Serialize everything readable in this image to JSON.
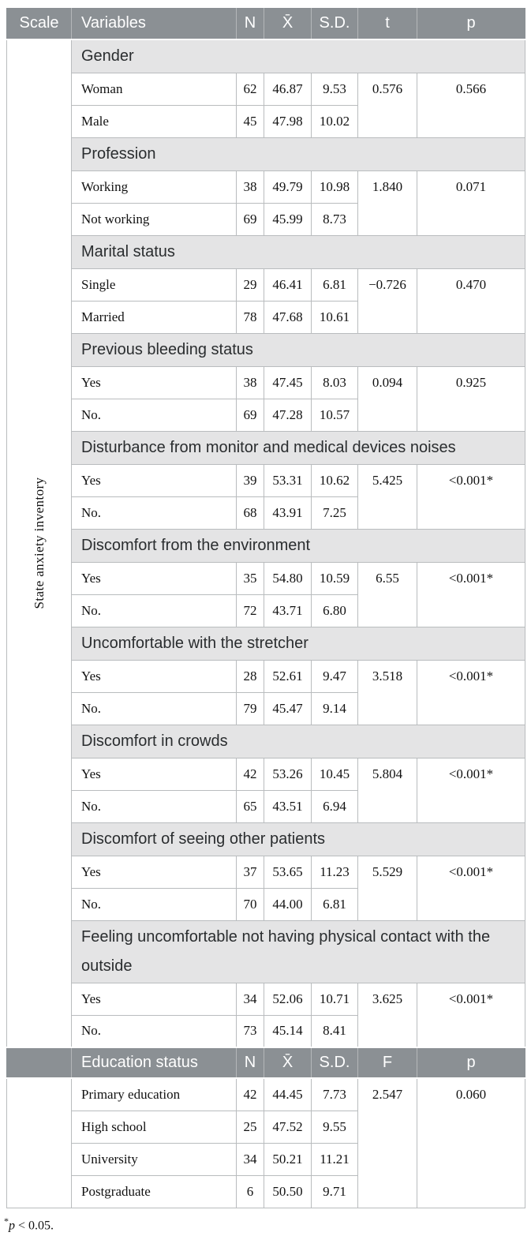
{
  "colors": {
    "header_bg": "#8b9094",
    "section_bg": "#e4e4e5",
    "border": "#b9bcbe",
    "header_text": "#ffffff"
  },
  "table": {
    "scale_label": "State anxiety inventory",
    "header": {
      "scale": "Scale",
      "variables": "Variables",
      "n": "N",
      "mean": "X̄",
      "sd": "S.D.",
      "t": "t",
      "p": "p"
    },
    "sections": [
      {
        "title": "Gender",
        "rows": [
          {
            "label": "Woman",
            "n": "62",
            "mean": "46.87",
            "sd": "9.53"
          },
          {
            "label": "Male",
            "n": "45",
            "mean": "47.98",
            "sd": "10.02"
          }
        ],
        "t": "0.576",
        "p": "0.566"
      },
      {
        "title": "Profession",
        "rows": [
          {
            "label": "Working",
            "n": "38",
            "mean": "49.79",
            "sd": "10.98"
          },
          {
            "label": "Not working",
            "n": "69",
            "mean": "45.99",
            "sd": "8.73"
          }
        ],
        "t": "1.840",
        "p": "0.071"
      },
      {
        "title": "Marital status",
        "rows": [
          {
            "label": "Single",
            "n": "29",
            "mean": "46.41",
            "sd": "6.81"
          },
          {
            "label": "Married",
            "n": "78",
            "mean": "47.68",
            "sd": "10.61"
          }
        ],
        "t": "−0.726",
        "p": "0.470"
      },
      {
        "title": "Previous bleeding status",
        "rows": [
          {
            "label": "Yes",
            "n": "38",
            "mean": "47.45",
            "sd": "8.03"
          },
          {
            "label": "No.",
            "n": "69",
            "mean": "47.28",
            "sd": "10.57"
          }
        ],
        "t": "0.094",
        "p": "0.925"
      },
      {
        "title": "Disturbance from monitor and medical devices noises",
        "rows": [
          {
            "label": "Yes",
            "n": "39",
            "mean": "53.31",
            "sd": "10.62"
          },
          {
            "label": "No.",
            "n": "68",
            "mean": "43.91",
            "sd": "7.25"
          }
        ],
        "t": "5.425",
        "p": "<0.001*"
      },
      {
        "title": "Discomfort from the environment",
        "rows": [
          {
            "label": "Yes",
            "n": "35",
            "mean": "54.80",
            "sd": "10.59"
          },
          {
            "label": "No.",
            "n": "72",
            "mean": "43.71",
            "sd": "6.80"
          }
        ],
        "t": "6.55",
        "p": "<0.001*"
      },
      {
        "title": "Uncomfortable with the stretcher",
        "rows": [
          {
            "label": "Yes",
            "n": "28",
            "mean": "52.61",
            "sd": "9.47"
          },
          {
            "label": "No.",
            "n": "79",
            "mean": "45.47",
            "sd": "9.14"
          }
        ],
        "t": "3.518",
        "p": "<0.001*"
      },
      {
        "title": "Discomfort in crowds",
        "rows": [
          {
            "label": "Yes",
            "n": "42",
            "mean": "53.26",
            "sd": "10.45"
          },
          {
            "label": "No.",
            "n": "65",
            "mean": "43.51",
            "sd": "6.94"
          }
        ],
        "t": "5.804",
        "p": "<0.001*"
      },
      {
        "title": "Discomfort of seeing other patients",
        "rows": [
          {
            "label": "Yes",
            "n": "37",
            "mean": "53.65",
            "sd": "11.23"
          },
          {
            "label": "No.",
            "n": "70",
            "mean": "44.00",
            "sd": "6.81"
          }
        ],
        "t": "5.529",
        "p": "<0.001*"
      },
      {
        "title": "Feeling uncomfortable not having physical contact with the outside",
        "rows": [
          {
            "label": "Yes",
            "n": "34",
            "mean": "52.06",
            "sd": "10.71"
          },
          {
            "label": "No.",
            "n": "73",
            "mean": "45.14",
            "sd": "8.41"
          }
        ],
        "t": "3.625",
        "p": "<0.001*"
      }
    ],
    "header2": {
      "label": "Education status",
      "n": "N",
      "mean": "X̄",
      "sd": "S.D.",
      "stat": "F",
      "p": "p"
    },
    "education": {
      "rows": [
        {
          "label": "Primary education",
          "n": "42",
          "mean": "44.45",
          "sd": "7.73"
        },
        {
          "label": "High school",
          "n": "25",
          "mean": "47.52",
          "sd": "9.55"
        },
        {
          "label": "University",
          "n": "34",
          "mean": "50.21",
          "sd": "11.21"
        },
        {
          "label": "Postgraduate",
          "n": "6",
          "mean": "50.50",
          "sd": "9.71"
        }
      ],
      "f": "2.547",
      "p": "0.060"
    }
  },
  "footnote": {
    "marker": "*",
    "symbol": "p",
    "rest": " < 0.05."
  }
}
